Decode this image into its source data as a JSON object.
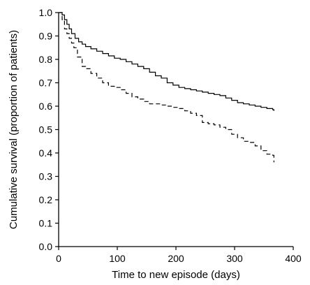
{
  "chart_data": {
    "type": "line",
    "title": "",
    "xlabel": "Time to new episode (days)",
    "ylabel": "Cumulative survival (proportion of patients)",
    "xlim": [
      0,
      400
    ],
    "ylim": [
      0,
      1.0
    ],
    "x_ticks": [
      0,
      100,
      200,
      300,
      400
    ],
    "x_tick_labels": [
      "0",
      "100",
      "200",
      "300",
      "400"
    ],
    "y_ticks": [
      0.0,
      0.1,
      0.2,
      0.3,
      0.4,
      0.5,
      0.6,
      0.7,
      0.8,
      0.9,
      1.0
    ],
    "y_tick_labels": [
      "0.0",
      "0.1",
      "0.2",
      "0.3",
      "0.4",
      "0.5",
      "0.6",
      "0.7",
      "0.8",
      "0.9",
      "1.0"
    ],
    "grid": false,
    "legend": "none",
    "series": [
      {
        "style": "solid",
        "step": true,
        "x": [
          0,
          6,
          10,
          14,
          18,
          22,
          28,
          34,
          40,
          46,
          55,
          65,
          75,
          85,
          95,
          105,
          115,
          125,
          135,
          145,
          155,
          165,
          175,
          185,
          195,
          205,
          215,
          225,
          235,
          245,
          255,
          265,
          275,
          285,
          295,
          305,
          315,
          325,
          335,
          345,
          355,
          365,
          367
        ],
        "y": [
          1.0,
          0.99,
          0.97,
          0.95,
          0.93,
          0.91,
          0.89,
          0.875,
          0.865,
          0.855,
          0.845,
          0.835,
          0.825,
          0.815,
          0.805,
          0.8,
          0.79,
          0.78,
          0.77,
          0.76,
          0.745,
          0.73,
          0.72,
          0.7,
          0.69,
          0.68,
          0.675,
          0.67,
          0.665,
          0.66,
          0.655,
          0.65,
          0.645,
          0.635,
          0.625,
          0.615,
          0.61,
          0.605,
          0.6,
          0.595,
          0.59,
          0.585,
          0.58
        ]
      },
      {
        "style": "dashed",
        "step": true,
        "x": [
          0,
          6,
          10,
          14,
          18,
          22,
          26,
          32,
          40,
          46,
          55,
          65,
          75,
          85,
          95,
          105,
          115,
          125,
          135,
          145,
          155,
          165,
          175,
          185,
          195,
          205,
          215,
          225,
          235,
          245,
          255,
          265,
          275,
          285,
          295,
          305,
          315,
          325,
          335,
          345,
          355,
          365,
          367
        ],
        "y": [
          1.0,
          0.97,
          0.93,
          0.91,
          0.89,
          0.87,
          0.85,
          0.81,
          0.77,
          0.76,
          0.74,
          0.72,
          0.7,
          0.685,
          0.68,
          0.67,
          0.655,
          0.64,
          0.63,
          0.62,
          0.61,
          0.61,
          0.605,
          0.6,
          0.595,
          0.59,
          0.58,
          0.57,
          0.56,
          0.53,
          0.525,
          0.52,
          0.51,
          0.5,
          0.48,
          0.465,
          0.45,
          0.445,
          0.43,
          0.41,
          0.395,
          0.39,
          0.36
        ]
      }
    ]
  }
}
